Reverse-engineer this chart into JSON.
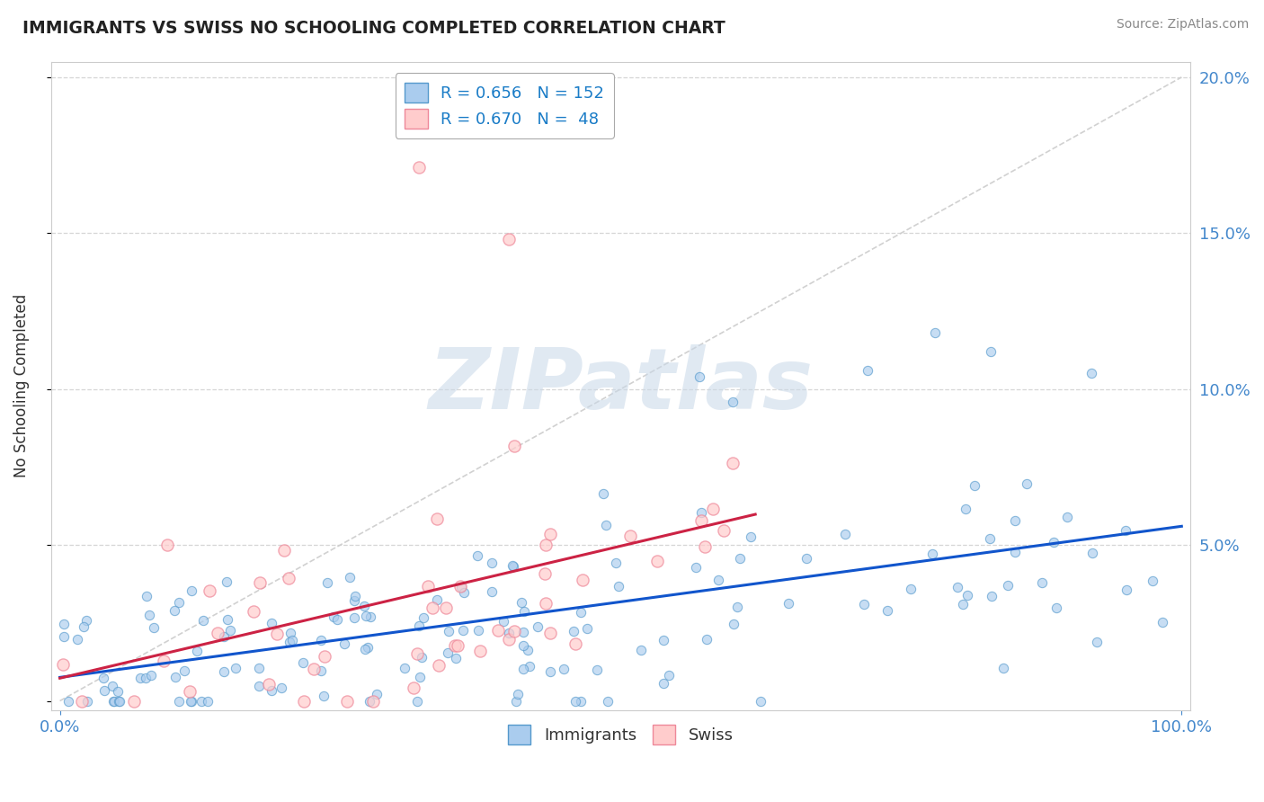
{
  "title": "IMMIGRANTS VS SWISS NO SCHOOLING COMPLETED CORRELATION CHART",
  "source": "Source: ZipAtlas.com",
  "ylabel": "No Schooling Completed",
  "watermark": "ZIPatlas",
  "R_immigrants": 0.656,
  "N_immigrants": 152,
  "R_swiss": 0.67,
  "N_swiss": 48,
  "immigrant_face_color": "#aaccee",
  "immigrant_edge_color": "#5599cc",
  "swiss_face_color": "#ffcccc",
  "swiss_edge_color": "#ee8899",
  "immigrant_line_color": "#1155cc",
  "swiss_line_color": "#cc2244",
  "diagonal_color": "#cccccc",
  "background_color": "#ffffff",
  "grid_color": "#dddddd",
  "title_color": "#222222",
  "source_color": "#888888",
  "watermark_color": "#c8d8e8",
  "axis_tick_color": "#4488cc",
  "legend_text_color": "#1a7cc7",
  "seed": 99
}
